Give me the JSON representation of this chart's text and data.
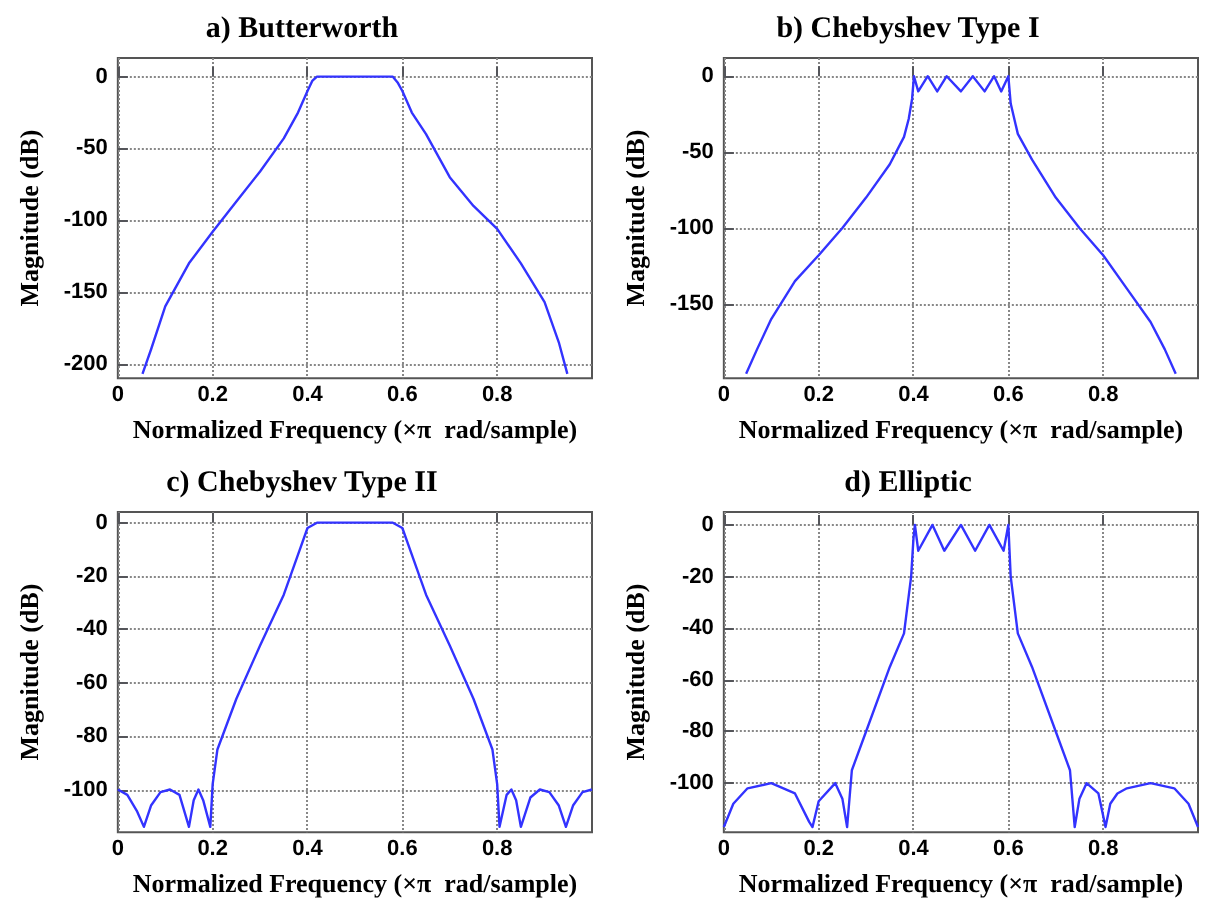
{
  "chart_data": [
    {
      "type": "line",
      "title": "a) Butterworth",
      "xlabel": "Normalized Frequency (×π  rad/sample)",
      "ylabel": "Magnitude (dB)",
      "xlim": [
        0,
        1
      ],
      "xticks": [
        0,
        0.2,
        0.4,
        0.6,
        0.8
      ],
      "ylim": [
        -210,
        13
      ],
      "yticks": [
        -200,
        -150,
        -100,
        -50,
        0
      ],
      "grid": true,
      "series": [
        {
          "color": "#3333ff",
          "x": [
            0.052,
            0.07,
            0.1,
            0.15,
            0.2,
            0.25,
            0.3,
            0.35,
            0.38,
            0.4,
            0.41,
            0.42,
            0.45,
            0.5,
            0.55,
            0.58,
            0.59,
            0.6,
            0.62,
            0.65,
            0.7,
            0.75,
            0.8,
            0.85,
            0.9,
            0.93,
            0.948
          ],
          "values": [
            -207,
            -190,
            -160,
            -130,
            -108,
            -87,
            -66,
            -43,
            -25,
            -10,
            -3,
            0,
            0,
            0,
            0,
            0,
            -4,
            -10,
            -25,
            -40,
            -70,
            -90,
            -106,
            -130,
            -157,
            -185,
            -207
          ]
        }
      ]
    },
    {
      "type": "line",
      "title": "b) Chebyshev Type I",
      "xlabel": "Normalized Frequency (×π  rad/sample)",
      "ylabel": "Magnitude (dB)",
      "xlim": [
        0,
        1
      ],
      "xticks": [
        0,
        0.2,
        0.4,
        0.6,
        0.8
      ],
      "ylim": [
        -199,
        12
      ],
      "yticks": [
        -150,
        -100,
        -50,
        0
      ],
      "grid": true,
      "series": [
        {
          "color": "#3333ff",
          "x": [
            0.047,
            0.07,
            0.1,
            0.15,
            0.2,
            0.25,
            0.3,
            0.35,
            0.38,
            0.39,
            0.397,
            0.401,
            0.41,
            0.43,
            0.45,
            0.47,
            0.5,
            0.525,
            0.55,
            0.57,
            0.585,
            0.6,
            0.605,
            0.62,
            0.65,
            0.7,
            0.75,
            0.8,
            0.85,
            0.9,
            0.93,
            0.953
          ],
          "values": [
            -196,
            -180,
            -160,
            -135,
            -118,
            -100,
            -80,
            -58,
            -40,
            -28,
            -15,
            0,
            -10,
            0,
            -10,
            0,
            -10,
            0,
            -10,
            0,
            -10,
            0,
            -18,
            -38,
            -55,
            -80,
            -100,
            -118,
            -140,
            -162,
            -180,
            -196
          ]
        }
      ]
    },
    {
      "type": "line",
      "title": "c) Chebyshev Type II",
      "xlabel": "Normalized Frequency (×π  rad/sample)",
      "ylabel": "Magnitude (dB)",
      "xlim": [
        0,
        1
      ],
      "xticks": [
        0,
        0.2,
        0.4,
        0.6,
        0.8
      ],
      "ylim": [
        -116,
        4
      ],
      "yticks": [
        -100,
        -80,
        -60,
        -40,
        -20,
        0
      ],
      "grid": true,
      "series": [
        {
          "color": "#3333ff",
          "x": [
            0,
            0.02,
            0.04,
            0.055,
            0.07,
            0.09,
            0.11,
            0.13,
            0.15,
            0.16,
            0.17,
            0.18,
            0.195,
            0.2,
            0.21,
            0.25,
            0.3,
            0.35,
            0.38,
            0.4,
            0.42,
            0.5,
            0.58,
            0.6,
            0.62,
            0.65,
            0.7,
            0.75,
            0.79,
            0.8,
            0.805,
            0.82,
            0.83,
            0.84,
            0.85,
            0.87,
            0.89,
            0.91,
            0.93,
            0.945,
            0.96,
            0.98,
            1.0
          ],
          "values": [
            -100,
            -102,
            -108,
            -114,
            -106,
            -101,
            -100,
            -102,
            -114,
            -104,
            -100,
            -104,
            -114,
            -98,
            -85,
            -66,
            -46,
            -27,
            -12,
            -2,
            0,
            0,
            0,
            -2,
            -12,
            -27,
            -46,
            -66,
            -85,
            -98,
            -114,
            -102,
            -100,
            -104,
            -114,
            -103,
            -100,
            -101,
            -106,
            -114,
            -106,
            -101,
            -100
          ]
        }
      ]
    },
    {
      "type": "line",
      "title": "d) Elliptic",
      "xlabel": "Normalized Frequency (×π  rad/sample)",
      "ylabel": "Magnitude (dB)",
      "xlim": [
        0,
        1
      ],
      "xticks": [
        0,
        0.2,
        0.4,
        0.6,
        0.8
      ],
      "ylim": [
        -119,
        5
      ],
      "yticks": [
        -100,
        -80,
        -60,
        -40,
        -20,
        0
      ],
      "grid": true,
      "series": [
        {
          "color": "#3333ff",
          "x": [
            0,
            0.02,
            0.05,
            0.1,
            0.15,
            0.18,
            0.187,
            0.2,
            0.235,
            0.25,
            0.26,
            0.27,
            0.3,
            0.35,
            0.38,
            0.395,
            0.4,
            0.403,
            0.41,
            0.44,
            0.465,
            0.5,
            0.53,
            0.56,
            0.59,
            0.6,
            0.605,
            0.62,
            0.65,
            0.7,
            0.73,
            0.74,
            0.75,
            0.765,
            0.79,
            0.805,
            0.815,
            0.83,
            0.85,
            0.9,
            0.95,
            0.98,
            1.0
          ],
          "values": [
            -117,
            -108,
            -102,
            -100,
            -104,
            -115,
            -117,
            -107,
            -100,
            -106,
            -117,
            -95,
            -80,
            -55,
            -42,
            -20,
            -5,
            0,
            -10,
            0,
            -10,
            0,
            -10,
            0,
            -10,
            0,
            -20,
            -42,
            -55,
            -80,
            -95,
            -117,
            -106,
            -100,
            -104,
            -117,
            -108,
            -104,
            -102,
            -100,
            -102,
            -108,
            -117
          ]
        }
      ]
    }
  ]
}
